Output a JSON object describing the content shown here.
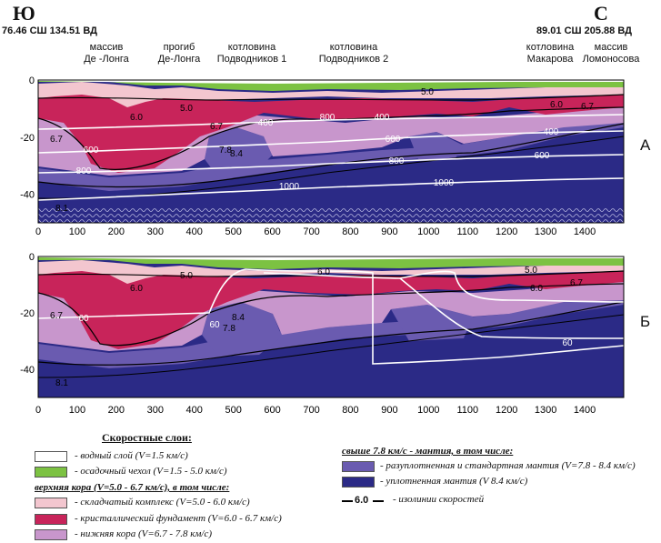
{
  "header": {
    "left_letter": "Ю",
    "right_letter": "С",
    "left_coords": "76.46 СШ 134.51 ВД",
    "right_coords": "89.01 СШ 205.88 ВД"
  },
  "features": [
    {
      "line1": "массив",
      "line2": "Де -Лонга"
    },
    {
      "line1": "прогиб",
      "line2": "Де-Лонга"
    },
    {
      "line1": "котловина",
      "line2": "Подводников 1"
    },
    {
      "line1": "котловина",
      "line2": "Подводников 2"
    },
    {
      "line1": "котловина",
      "line2": "Макарова"
    },
    {
      "line1": "массив",
      "line2": "Ломоносова"
    }
  ],
  "panels": {
    "a_label": "А",
    "b_label": "Б"
  },
  "axes": {
    "x_ticks": [
      "0",
      "100",
      "200",
      "300",
      "400",
      "500",
      "600",
      "700",
      "800",
      "900",
      "1000",
      "1100",
      "1200",
      "1300",
      "1400"
    ],
    "y_ticks": [
      "0",
      "-20",
      "-40"
    ]
  },
  "colors": {
    "water": "#ffffff",
    "sediment": "#7cc242",
    "folded": "#f3c6cf",
    "crystalline": "#c8245a",
    "lower_crust": "#c896cc",
    "mantle_light": "#6a5bb0",
    "mantle_dense": "#2b2a86"
  },
  "contour_labels_a": [
    "5.0",
    "6.0",
    "6.7",
    "7.8",
    "8.1",
    "8.4",
    "6.7",
    "5.0",
    "6.0",
    "6.7",
    "400",
    "600",
    "800",
    "1000",
    "400",
    "600",
    "800",
    "1000",
    "400",
    "600",
    "800"
  ],
  "contour_labels_b": [
    "5.0",
    "6.0",
    "6.7",
    "60",
    "7.8",
    "8.4",
    "8.1",
    "6.0",
    "60",
    "6.7",
    "60",
    "5.0",
    "6.0"
  ],
  "legend": {
    "title": "Скоростные слои:",
    "water": "- водный слой (V=1.5 км/с)",
    "sediment": "- осадочный чехол (V=1.5 - 5.0 км/с)",
    "upper_crust_heading": "верхняя кора (V=5.0 - 6.7 км/с), в том числе:",
    "folded": "- складчатый комплекс (V=5.0 - 6.0 км/с)",
    "crystalline": "- кристаллический фундамент (V=6.0 - 6.7 км/с)",
    "lower_crust": "- нижняя кора (V=6.7 - 7.8 км/с)",
    "mantle_heading": "свыше 7.8 км/с - мантия, в том числе:",
    "mantle_light": "- разуплотненная и стандартная мантия (V=7.8 - 8.4 км/с)",
    "mantle_dense": "- уплотненная мантия (V 8.4 км/с)",
    "isoline_value": "6.0",
    "isoline_text": "- изолинии скоростей"
  }
}
